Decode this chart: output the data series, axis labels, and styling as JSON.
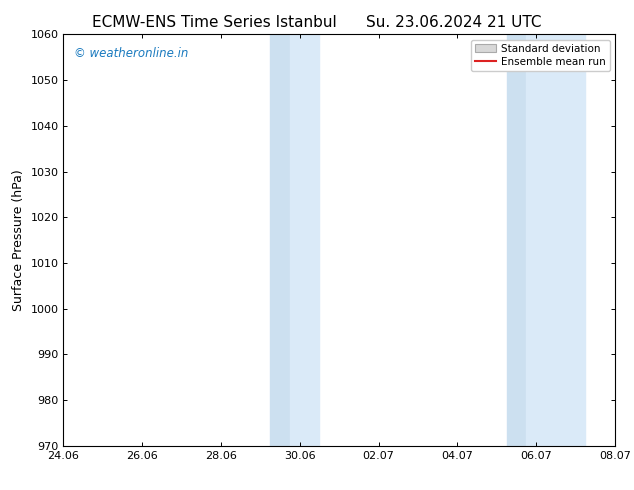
{
  "title_left": "ECMW-ENS Time Series Istanbul",
  "title_right": "Su. 23.06.2024 21 UTC",
  "ylabel": "Surface Pressure (hPa)",
  "ylim": [
    970,
    1060
  ],
  "yticks": [
    970,
    980,
    990,
    1000,
    1010,
    1020,
    1030,
    1040,
    1050,
    1060
  ],
  "xtick_labels": [
    "24.06",
    "26.06",
    "28.06",
    "30.06",
    "02.07",
    "04.07",
    "06.07",
    "08.07"
  ],
  "xtick_positions": [
    0,
    2,
    4,
    6,
    8,
    10,
    12,
    14
  ],
  "xlim": [
    0,
    14
  ],
  "shaded_bands": [
    {
      "x_start": 5.25,
      "x_end": 5.75,
      "color": "#cce0f0"
    },
    {
      "x_start": 5.75,
      "x_end": 6.5,
      "color": "#daeaf8"
    },
    {
      "x_start": 11.25,
      "x_end": 11.75,
      "color": "#cce0f0"
    },
    {
      "x_start": 11.75,
      "x_end": 13.25,
      "color": "#daeaf8"
    }
  ],
  "watermark_text": "© weatheronline.in",
  "watermark_color": "#1a7abf",
  "legend_std_label": "Standard deviation",
  "legend_mean_label": "Ensemble mean run",
  "legend_std_facecolor": "#d8d8d8",
  "legend_std_edgecolor": "#aaaaaa",
  "legend_mean_color": "#dd2222",
  "title_fontsize": 11,
  "axis_label_fontsize": 9,
  "tick_fontsize": 8,
  "background_color": "#ffffff"
}
